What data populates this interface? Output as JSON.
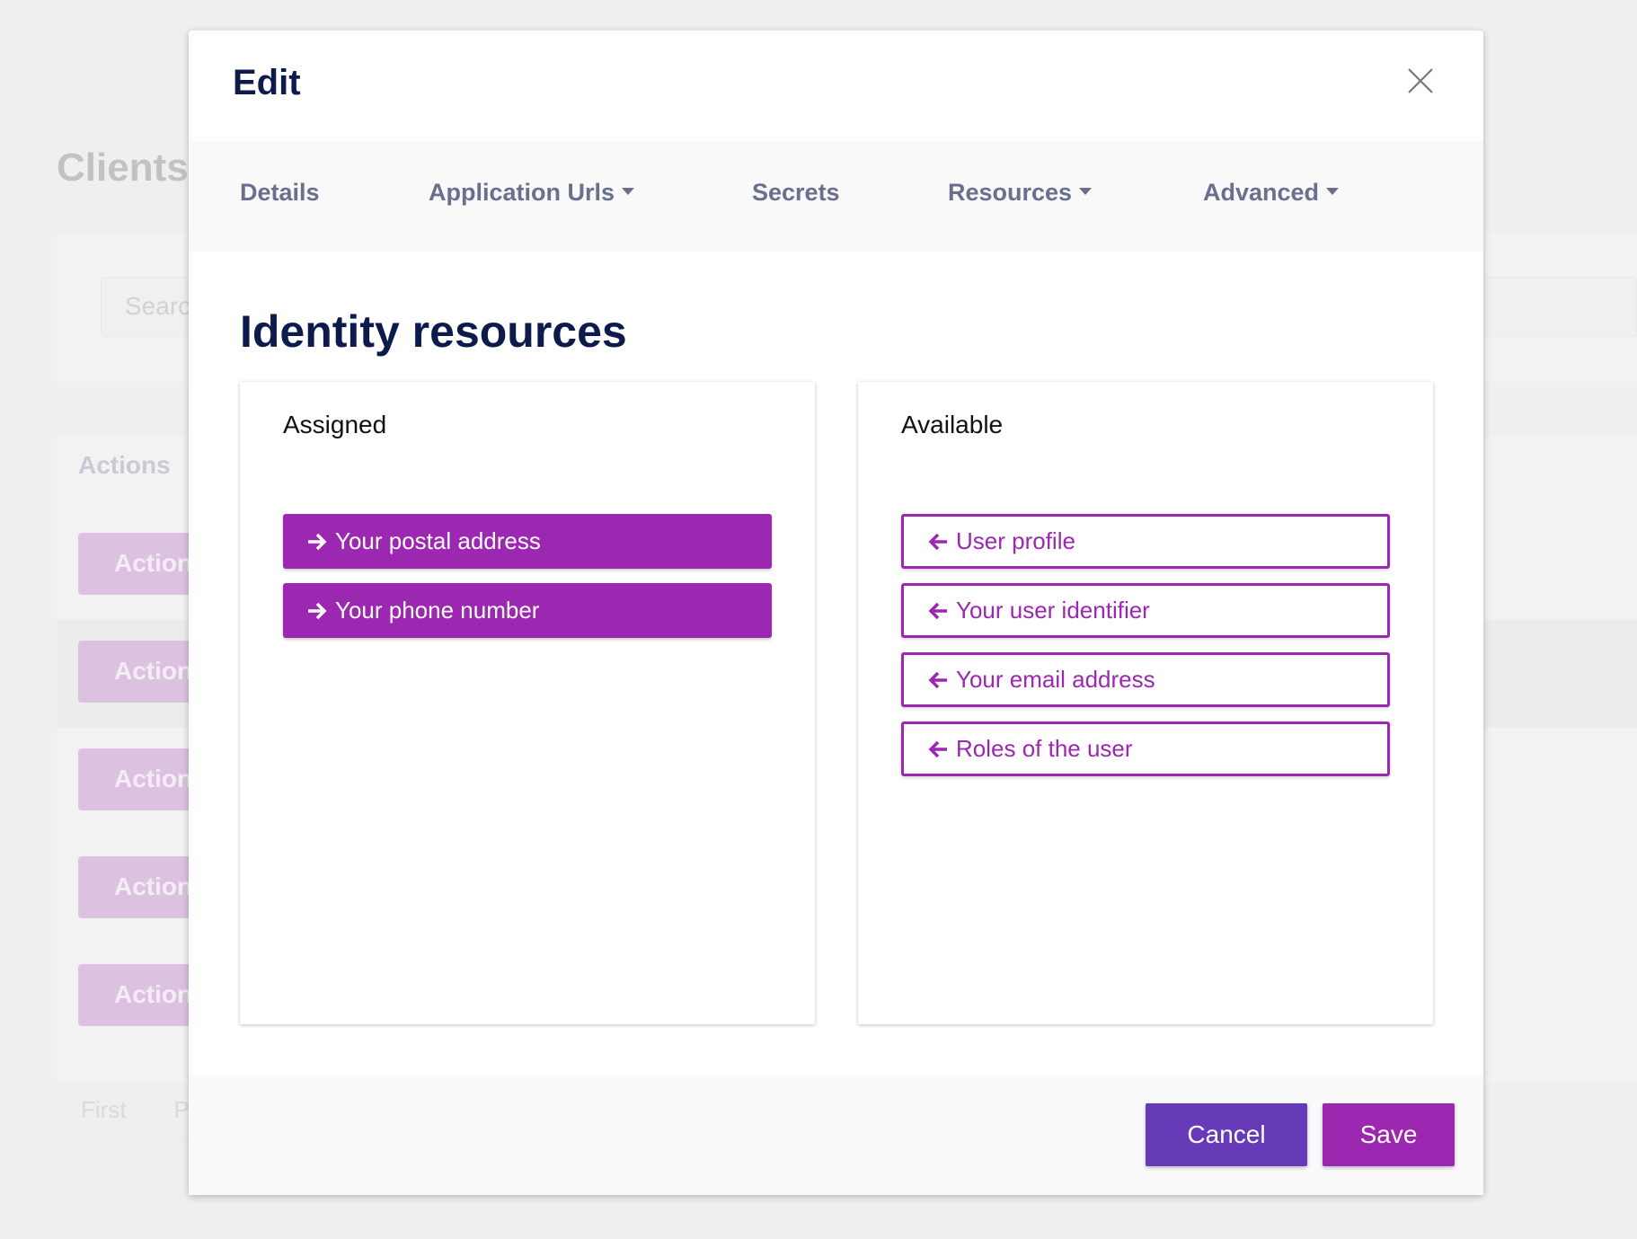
{
  "background": {
    "title": "Clients",
    "search_placeholder": "Search",
    "actions_header": "Actions",
    "action_label": "Actions",
    "pagination": [
      "First",
      "Previous"
    ]
  },
  "modal": {
    "title": "Edit",
    "close_icon": "close-icon",
    "tabs": [
      {
        "label": "Details",
        "dropdown": false
      },
      {
        "label": "Application Urls",
        "dropdown": true
      },
      {
        "label": "Secrets",
        "dropdown": false
      },
      {
        "label": "Resources",
        "dropdown": true
      },
      {
        "label": "Advanced",
        "dropdown": true
      }
    ],
    "heading": "Identity resources",
    "assigned": {
      "label": "Assigned",
      "items": [
        "Your postal address",
        "Your phone number"
      ]
    },
    "available": {
      "label": "Available",
      "items": [
        "User profile",
        "Your user identifier",
        "Your email address",
        "Roles of the user"
      ]
    },
    "cancel_label": "Cancel",
    "save_label": "Save"
  },
  "colors": {
    "primary": "#9c27b0",
    "cancel": "#673ab7",
    "title": "#0d1b4c",
    "tab": "#6a6f8e"
  }
}
